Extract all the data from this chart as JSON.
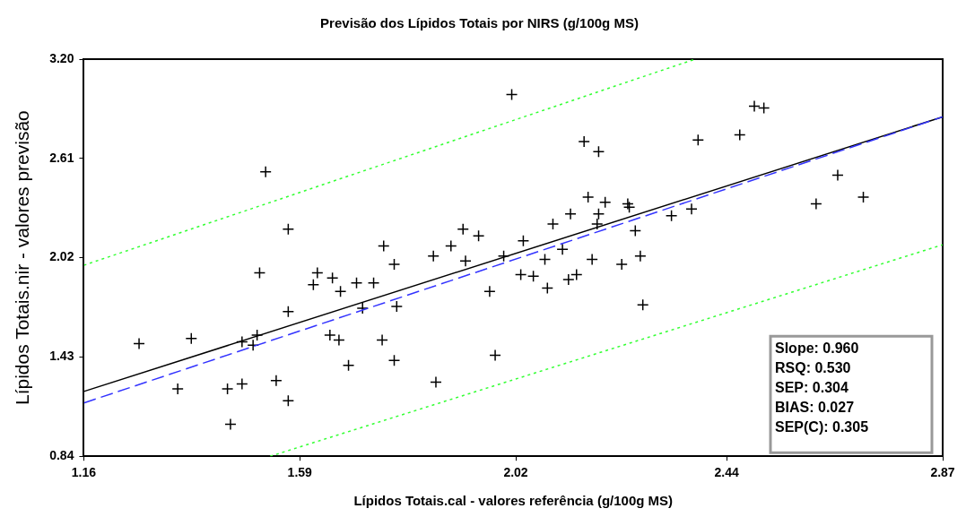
{
  "chart_data": {
    "type": "scatter",
    "title": "Previsão dos Lípidos Totais por NIRS (g/100g MS)",
    "xlabel": "Lípidos Totais.cal - valores referência (g/100g MS)",
    "ylabel": "Lípidos Totais.nir - valores previsão",
    "xlim": [
      1.16,
      2.87
    ],
    "xticks": [
      1.16,
      1.59,
      2.02,
      2.44,
      2.87
    ],
    "ylim": [
      0.84,
      3.2
    ],
    "yticks": [
      0.84,
      1.43,
      2.02,
      2.61,
      {
        "value": 3.2,
        "label": "3.20"
      }
    ],
    "grid": false,
    "legend": false,
    "annotations": [
      "Slope: 0.960",
      "RSQ: 0.530",
      "SEP: 0.304",
      "BIAS: 0.027",
      "SEP(C): 0.305"
    ],
    "series": [
      {
        "type": "line",
        "color": "#33ff33",
        "line_style": "dotted",
        "marker": "none",
        "x": [
          1.16,
          2.377
        ],
        "values": [
          1.975,
          3.2
        ]
      },
      {
        "type": "line",
        "color": "#33ff33",
        "line_style": "dotted",
        "marker": "none",
        "x": [
          1.531,
          2.87
        ],
        "values": [
          0.84,
          2.097
        ]
      },
      {
        "type": "line",
        "color": "#3333ff",
        "line_style": "dashed",
        "marker": "none",
        "x": [
          1.16,
          2.87
        ],
        "values": [
          1.157,
          2.857
        ]
      },
      {
        "type": "line",
        "color": "#000000",
        "line_style": "solid",
        "marker": "none",
        "x": [
          1.16,
          2.87
        ],
        "values": [
          1.225,
          2.857
        ]
      },
      {
        "color": "#000000",
        "marker": "cross",
        "x": [
          1.522,
          1.567,
          1.757,
          1.51,
          1.625,
          1.655,
          1.617,
          1.703,
          1.737,
          1.671,
          1.567,
          1.715,
          1.27,
          1.374,
          1.505,
          1.475,
          1.497,
          1.65,
          1.668,
          1.754,
          1.687,
          1.347,
          1.446,
          1.475,
          1.543,
          1.567,
          1.452,
          1.778,
          1.783,
          1.778,
          2.012,
          2.156,
          2.185,
          2.164,
          2.198,
          2.243,
          2.246,
          2.129,
          2.185,
          2.094,
          2.182,
          1.915,
          1.946,
          2.035,
          2.258,
          2.33,
          2.37,
          1.856,
          1.891,
          1.92,
          1.996,
          2.113,
          2.078,
          2.172,
          2.268,
          2.231,
          2.03,
          2.055,
          2.125,
          2.141,
          2.083,
          1.968,
          2.273,
          1.979,
          1.861,
          2.495,
          2.514,
          2.466,
          2.383,
          2.661,
          2.712,
          2.618
        ],
        "values": [
          2.53,
          2.19,
          2.09,
          1.93,
          1.93,
          1.9,
          1.86,
          1.87,
          1.87,
          1.82,
          1.7,
          1.72,
          1.51,
          1.54,
          1.56,
          1.52,
          1.5,
          1.56,
          1.53,
          1.53,
          1.38,
          1.24,
          1.24,
          1.27,
          1.29,
          1.17,
          1.03,
          1.98,
          1.73,
          1.41,
          2.99,
          2.71,
          2.65,
          2.38,
          2.35,
          2.34,
          2.32,
          2.28,
          2.28,
          2.22,
          2.22,
          2.19,
          2.15,
          2.12,
          2.18,
          2.27,
          2.31,
          2.03,
          2.09,
          2.0,
          2.03,
          2.07,
          2.01,
          2.01,
          2.03,
          1.98,
          1.92,
          1.91,
          1.89,
          1.92,
          1.84,
          1.82,
          1.74,
          1.44,
          1.28,
          2.92,
          2.91,
          2.75,
          2.72,
          2.51,
          2.38,
          2.34
        ]
      }
    ]
  }
}
